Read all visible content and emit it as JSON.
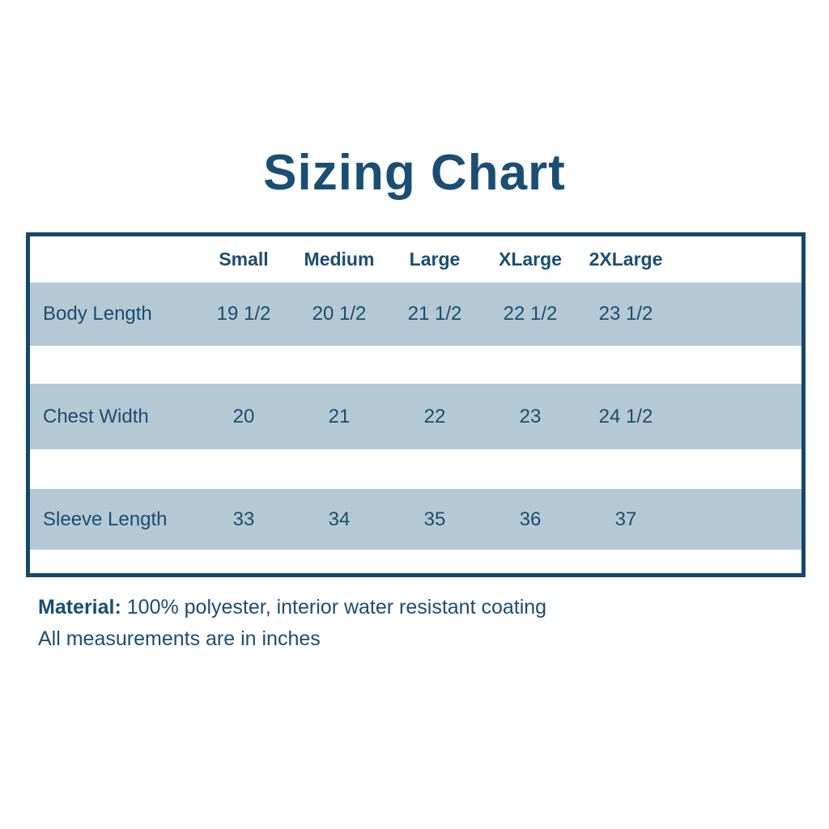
{
  "title": "Sizing Chart",
  "chart_data": {
    "type": "table",
    "title": "Sizing Chart",
    "columns": [
      "Small",
      "Medium",
      "Large",
      "XLarge",
      "2XLarge"
    ],
    "rows": [
      {
        "label": "Body Length",
        "values": [
          "19 1/2",
          "20 1/2",
          "21 1/2",
          "22 1/2",
          "23 1/2"
        ]
      },
      {
        "label": "Chest Width",
        "values": [
          "20",
          "21",
          "22",
          "23",
          "24 1/2"
        ]
      },
      {
        "label": "Sleeve Length",
        "values": [
          "33",
          "34",
          "35",
          "36",
          "37"
        ]
      }
    ],
    "units": "inches"
  },
  "footer": {
    "material_label": "Material:",
    "material_value": " 100% polyester, interior water resistant coating",
    "note": "All measurements are in inches"
  },
  "colors": {
    "navy_text": "#1b4d70",
    "title": "#1b4e73",
    "table_border": "#14476c",
    "band": "#b4c9d4",
    "background": "#ffffff"
  }
}
